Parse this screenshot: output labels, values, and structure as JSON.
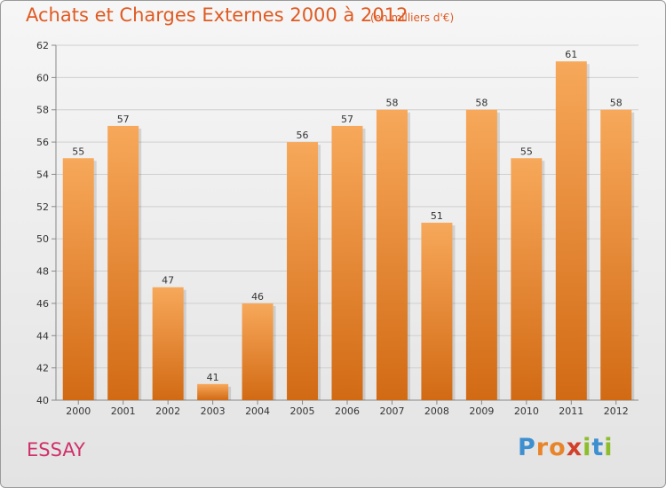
{
  "header": {
    "title": "Achats et Charges Externes 2000 à 2012",
    "unit": "(en milliers d'€)"
  },
  "footer": {
    "place": "ESSAY",
    "logo_text": "Proxiti",
    "logo_letters": [
      {
        "ch": "P",
        "color": "#3d8fd0"
      },
      {
        "ch": "r",
        "color": "#e8842a"
      },
      {
        "ch": "o",
        "color": "#e8842a"
      },
      {
        "ch": "x",
        "color": "#d2402a"
      },
      {
        "ch": "i",
        "color": "#8cbd2a"
      },
      {
        "ch": "t",
        "color": "#3d8fd0"
      },
      {
        "ch": "i",
        "color": "#8cbd2a"
      }
    ]
  },
  "colors": {
    "bar_top": "#f7a85a",
    "bar_bottom": "#d26a14",
    "grid": "#cfcfcf",
    "title": "#e05a22",
    "place": "#d0306a"
  },
  "chart_data": {
    "type": "bar",
    "title": "Achats et Charges Externes 2000 à 2012",
    "subtitle": "(en milliers d'€)",
    "xlabel": "",
    "ylabel": "",
    "categories": [
      "2000",
      "2001",
      "2002",
      "2003",
      "2004",
      "2005",
      "2006",
      "2007",
      "2008",
      "2009",
      "2010",
      "2011",
      "2012"
    ],
    "values": [
      55,
      57,
      47,
      41,
      46,
      56,
      57,
      58,
      51,
      58,
      55,
      61,
      58
    ],
    "ylim": [
      40,
      62
    ],
    "yticks": [
      40,
      42,
      44,
      46,
      48,
      50,
      52,
      54,
      56,
      58,
      60,
      62
    ],
    "grid": true,
    "legend": "none"
  }
}
